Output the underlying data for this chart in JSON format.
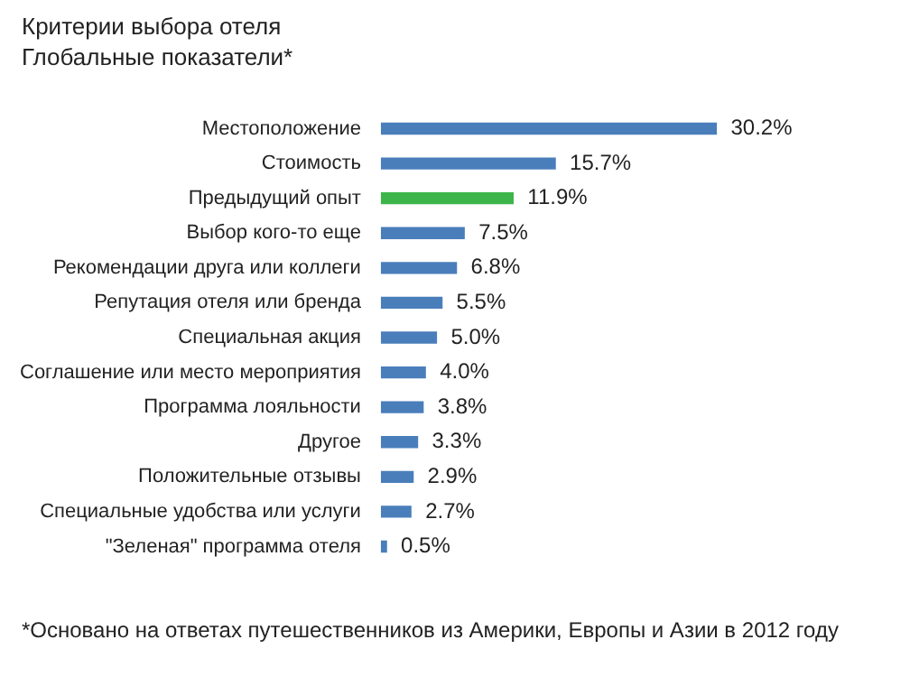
{
  "chart_data": {
    "type": "bar",
    "orientation": "horizontal",
    "title": "Критерии выбора отеля",
    "subtitle": "Глобальные показатели*",
    "categories": [
      "Местоположение",
      "Стоимость",
      "Предыдущий опыт",
      "Выбор кого-то еще",
      "Рекомендации друга или коллеги",
      "Репутация отеля или бренда",
      "Специальная акция",
      "Соглашение или место мероприятия",
      "Программа лояльности",
      "Другое",
      "Положительные отзывы",
      "Специальные удобства или услуги",
      "\"Зеленая\" программа отеля"
    ],
    "values": [
      30.2,
      15.7,
      11.9,
      7.5,
      6.8,
      5.5,
      5.0,
      4.0,
      3.8,
      3.3,
      2.9,
      2.7,
      0.5
    ],
    "value_labels": [
      "30.2%",
      "15.7%",
      "11.9%",
      "7.5%",
      "6.8%",
      "5.5%",
      "5.0%",
      "4.0%",
      "3.8%",
      "3.3%",
      "2.9%",
      "2.7%",
      "0.5%"
    ],
    "colors": [
      "#4a7ebb",
      "#4a7ebb",
      "#3db54a",
      "#4a7ebb",
      "#4a7ebb",
      "#4a7ebb",
      "#4a7ebb",
      "#4a7ebb",
      "#4a7ebb",
      "#4a7ebb",
      "#4a7ebb",
      "#4a7ebb",
      "#4a7ebb"
    ],
    "annotations": [
      "*Основано на ответах путешественников из Америки, Европы и Азии в 2012 году"
    ]
  }
}
